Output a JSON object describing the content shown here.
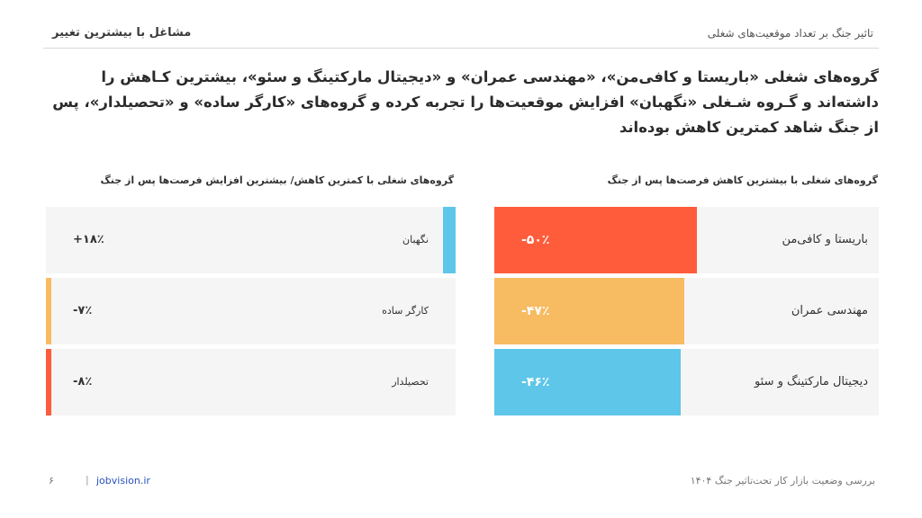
{
  "header": {
    "left_title": "مشاغل با بیشترین تغییر",
    "right_title": "تاثیر جنگ بر تعداد موقعیت‌های شغلی"
  },
  "headline": "گروه‌های شغلی «باریستا و کافی‌من»، «مهندسی عمران» و «دیجیتال مارکتینگ و سئو»، بیشترین کـاهش را داشته‌اند و گـروه شـغلی «نگهبان» افزایش موقعیت‌ها را تجربه کرده و گروه‌های «کارگر ساده» و «تحصیلدار»، پس از جنگ شاهد کمترین کاهش بوده‌اند",
  "chart_data": [
    {
      "type": "bar",
      "title": "گروه‌های شغلی با بیشترین کاهش فرصت‌ها پس از جنگ",
      "categories": [
        "باریستا و کافی‌من",
        "مهندسی عمران",
        "دیجیتال مارکتینگ و سئو"
      ],
      "values": [
        -50,
        -47,
        -46
      ],
      "value_labels": [
        "-۵۰٪",
        "-۴۷٪",
        "-۴۶٪"
      ],
      "colors": [
        "#ff5c3b",
        "#f7bb62",
        "#5ec6e8"
      ]
    },
    {
      "type": "table",
      "title": "گروه‌های شغلی با کمترین کاهش/ بیشترین افزایش فرصت‌ها پس از جنگ",
      "categories": [
        "نگهبان",
        "کارگر ساده",
        "تحصیلدار"
      ],
      "values": [
        18,
        -7,
        -8
      ],
      "value_labels": [
        "+۱۸٪",
        "-۷٪",
        "-۸٪"
      ],
      "colors": [
        "#5ec6e8",
        "#f7bb62",
        "#ff5c3b"
      ]
    }
  ],
  "footer": {
    "page_number": "۶",
    "separator": "|",
    "link": "jobvision.ir",
    "caption": "بررسی وضعیت بازار کار تحت‌تاثیر جنگ ۱۴۰۴"
  }
}
